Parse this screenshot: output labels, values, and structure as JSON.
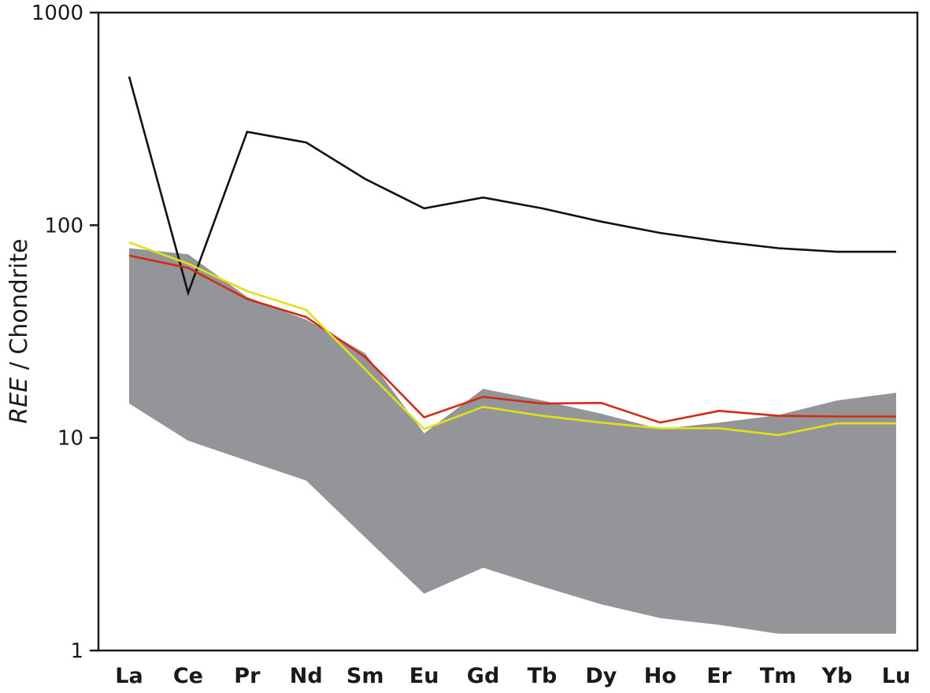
{
  "chart_data": {
    "type": "line",
    "title": "",
    "xlabel": "",
    "ylabel_italic": "REE",
    "ylabel_rest": " / Chondrite",
    "yscale": "log",
    "ylim": [
      1,
      1000
    ],
    "yticks": [
      1,
      10,
      100,
      1000
    ],
    "ytick_labels": [
      "1",
      "10",
      "100",
      "1000"
    ],
    "grid": false,
    "legend": "none",
    "categories": [
      "La",
      "Ce",
      "Pr",
      "Nd",
      "Sm",
      "Eu",
      "Gd",
      "Tb",
      "Dy",
      "Ho",
      "Er",
      "Tm",
      "Yb",
      "Lu"
    ],
    "band": {
      "color": "#939598",
      "upper": [
        78,
        73,
        46,
        36,
        25,
        10.5,
        17,
        15,
        13,
        11,
        11.8,
        12.8,
        15,
        16.3
      ],
      "lower": [
        14.5,
        9.7,
        7.8,
        6.3,
        3.4,
        1.85,
        2.45,
        2.0,
        1.65,
        1.42,
        1.32,
        1.2,
        1.2,
        1.2
      ]
    },
    "series": [
      {
        "color": "#111111",
        "values": [
          500,
          48,
          275,
          245,
          165,
          120,
          135,
          120,
          104,
          92,
          84,
          78,
          75,
          75
        ]
      },
      {
        "color": "#d42a14",
        "values": [
          72,
          63,
          45,
          37,
          24,
          12.5,
          15.6,
          14.5,
          14.6,
          11.8,
          13.4,
          12.7,
          12.6,
          12.6
        ]
      },
      {
        "color": "#e2e117",
        "values": [
          83,
          66,
          49,
          40,
          21,
          11,
          14,
          12.7,
          11.8,
          11.1,
          11.1,
          10.3,
          11.7,
          11.7
        ]
      }
    ]
  }
}
